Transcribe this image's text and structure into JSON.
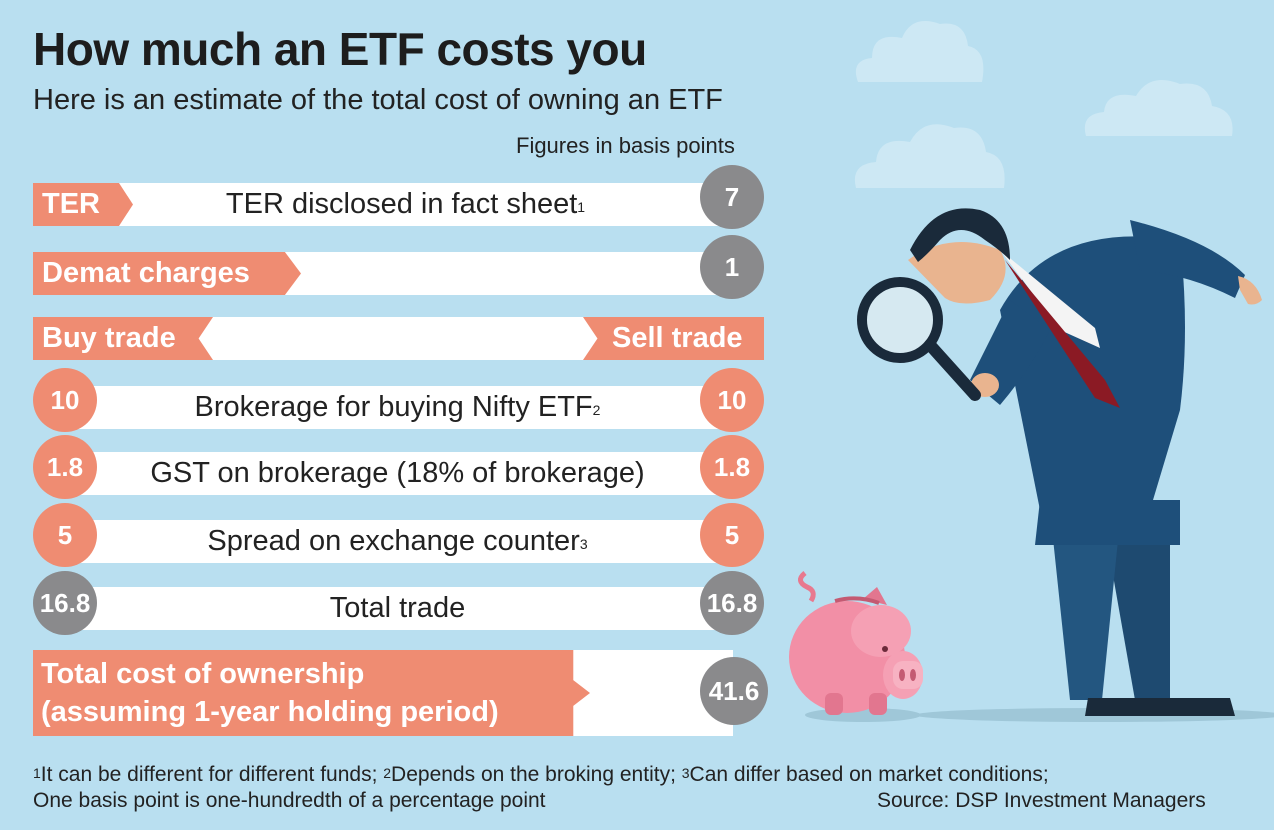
{
  "title": "How much an ETF costs you",
  "subtitle": "Here is an estimate of the total cost of owning an ETF",
  "note": "Figures in basis points",
  "rows": {
    "ter": {
      "label": "TER",
      "text": "TER disclosed in fact sheet",
      "sup": "1",
      "value": "7"
    },
    "demat": {
      "label": "Demat charges",
      "value": "1"
    },
    "trade_header": {
      "buy": "Buy trade",
      "sell": "Sell trade"
    },
    "brokerage": {
      "text": "Brokerage for buying Nifty ETF",
      "sup": "2",
      "buy": "10",
      "sell": "10"
    },
    "gst": {
      "text": "GST on brokerage (18% of brokerage)",
      "buy": "1.8",
      "sell": "1.8"
    },
    "spread": {
      "text": "Spread on exchange counter",
      "sup": "3",
      "buy": "5",
      "sell": "5"
    },
    "total_trade": {
      "text": "Total trade",
      "buy": "16.8",
      "sell": "16.8"
    },
    "total_cost": {
      "line1": "Total cost of ownership",
      "line2": "(assuming 1-year holding period)",
      "value": "41.6"
    }
  },
  "chart_data": {
    "type": "table",
    "title": "How much an ETF costs you",
    "subtitle": "Here is an estimate of the total cost of owning an ETF",
    "unit": "Figures in basis points",
    "columns": [
      "Buy trade",
      "Sell trade"
    ],
    "items": [
      {
        "name": "TER disclosed in fact sheet",
        "value": 7
      },
      {
        "name": "Demat charges",
        "value": 1
      },
      {
        "name": "Brokerage for buying Nifty ETF",
        "buy": 10,
        "sell": 10
      },
      {
        "name": "GST on brokerage (18% of brokerage)",
        "buy": 1.8,
        "sell": 1.8
      },
      {
        "name": "Spread on exchange counter",
        "buy": 5,
        "sell": 5
      },
      {
        "name": "Total trade",
        "buy": 16.8,
        "sell": 16.8
      },
      {
        "name": "Total cost of ownership (assuming 1-year holding period)",
        "value": 41.6
      }
    ]
  },
  "footnotes": {
    "n1": "1",
    "t1": "It can be different for different funds; ",
    "n2": "2",
    "t2": "Depends on the broking entity; ",
    "n3": "3",
    "t3": "Can differ based on market conditions;",
    "line2": "One basis point is one-hundredth of a percentage point",
    "source": "Source: DSP Investment Managers"
  },
  "colors": {
    "background": "#b9dff0",
    "accent": "#ef8c72",
    "neutral": "#8a8a8c",
    "bar": "#ffffff"
  },
  "illustration": {
    "figure": "man-with-magnifying-glass-icon",
    "pig": "piggy-bank-icon",
    "clouds": "cloud-icon"
  }
}
